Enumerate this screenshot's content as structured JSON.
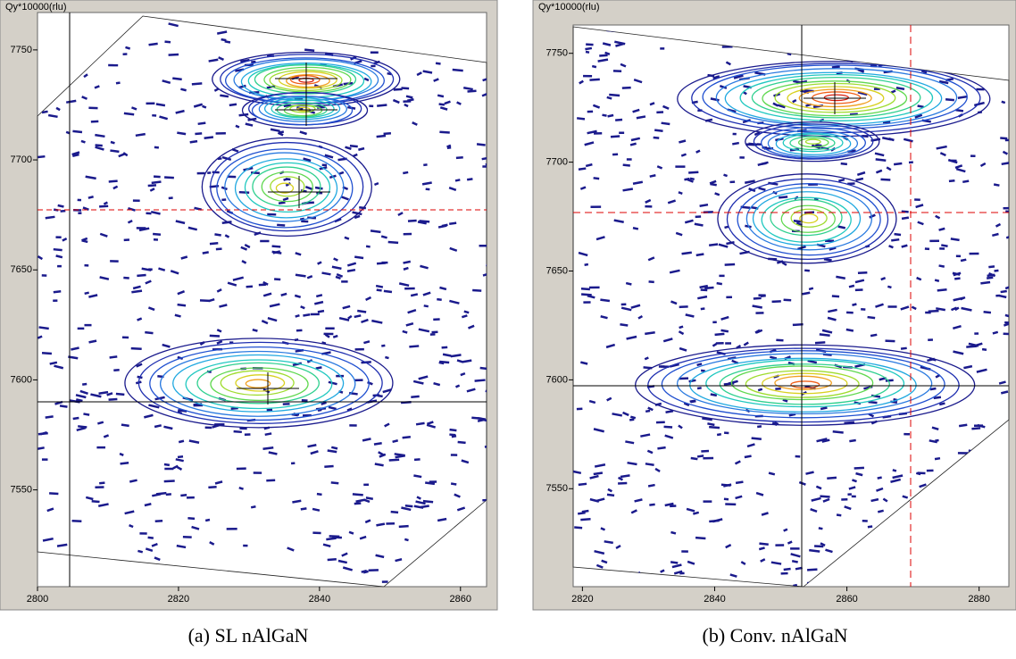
{
  "figure": {
    "panels": [
      {
        "axis_label": "Qy*10000(rlu)",
        "xlim": [
          2800,
          2863.7
        ],
        "ylim": [
          7506,
          7767
        ],
        "xticks": [
          2800,
          2820,
          2840,
          2860
        ],
        "yticks": [
          7550,
          7600,
          7650,
          7700,
          7750
        ],
        "caption": "(a) SL nAlGaN"
      },
      {
        "axis_label": "Qy*10000(rlu)",
        "xlim": [
          2818.6,
          2884.5
        ],
        "ylim": [
          7505,
          7763
        ],
        "xticks": [
          2820,
          2840,
          2860,
          2880
        ],
        "yticks": [
          7550,
          7600,
          7650,
          7700,
          7750
        ],
        "caption": "(b) Conv. nAlGaN"
      }
    ]
  }
}
